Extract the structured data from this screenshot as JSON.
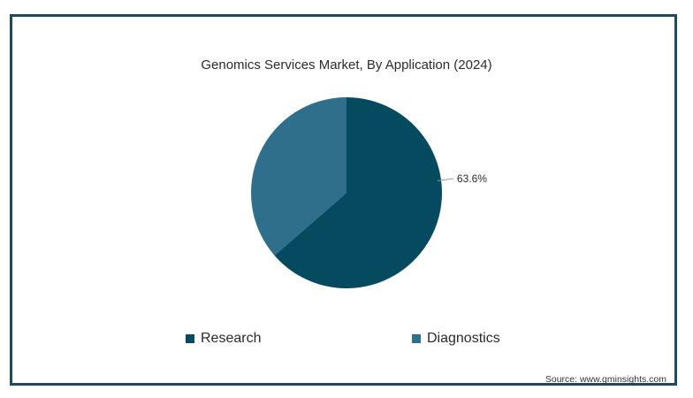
{
  "chart_data": {
    "type": "pie",
    "title": "Genomics Services Market, By Application (2024)",
    "slices": [
      {
        "label": "Research",
        "value": 63.6,
        "color": "#054a5f",
        "data_label": "63.6%"
      },
      {
        "label": "Diagnostics",
        "value": 36.4,
        "color": "#2f6f8c",
        "data_label": ""
      }
    ],
    "legend_position": "bottom"
  },
  "source": "Source: www.gminsights.com"
}
